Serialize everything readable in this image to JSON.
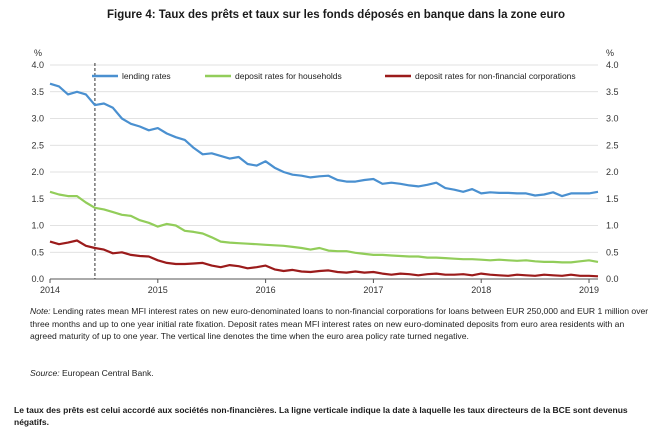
{
  "figure_title": "Figure 4: Taux des prêts et taux sur les fonds déposés en banque dans la zone euro",
  "chart_data": {
    "type": "line",
    "y_unit_left": "%",
    "y_unit_right": "%",
    "ylim": [
      0,
      4.0
    ],
    "y_ticks": [
      "4.0",
      "3.5",
      "3.0",
      "2.5",
      "2.0",
      "1.5",
      "1.0",
      "0.5",
      "0.0"
    ],
    "x_ticks": [
      "2014",
      "2015",
      "2016",
      "2017",
      "2018",
      "2019"
    ],
    "xlim": [
      "2014-01",
      "2019-02"
    ],
    "legend_position": "top",
    "vertical_line_date": "2014-06",
    "series": [
      {
        "name": "lending rates",
        "color": "#4a90d0",
        "x": [
          "2014-01",
          "2014-02",
          "2014-03",
          "2014-04",
          "2014-05",
          "2014-06",
          "2014-07",
          "2014-08",
          "2014-09",
          "2014-10",
          "2014-11",
          "2014-12",
          "2015-01",
          "2015-02",
          "2015-03",
          "2015-04",
          "2015-05",
          "2015-06",
          "2015-07",
          "2015-08",
          "2015-09",
          "2015-10",
          "2015-11",
          "2015-12",
          "2016-01",
          "2016-02",
          "2016-03",
          "2016-04",
          "2016-05",
          "2016-06",
          "2016-07",
          "2016-08",
          "2016-09",
          "2016-10",
          "2016-11",
          "2016-12",
          "2017-01",
          "2017-02",
          "2017-03",
          "2017-04",
          "2017-05",
          "2017-06",
          "2017-07",
          "2017-08",
          "2017-09",
          "2017-10",
          "2017-11",
          "2017-12",
          "2018-01",
          "2018-02",
          "2018-03",
          "2018-04",
          "2018-05",
          "2018-06",
          "2018-07",
          "2018-08",
          "2018-09",
          "2018-10",
          "2018-11",
          "2018-12",
          "2019-01",
          "2019-02"
        ],
        "values": [
          3.65,
          3.6,
          3.45,
          3.5,
          3.45,
          3.25,
          3.28,
          3.2,
          3.0,
          2.9,
          2.85,
          2.78,
          2.82,
          2.72,
          2.65,
          2.6,
          2.45,
          2.33,
          2.35,
          2.3,
          2.25,
          2.28,
          2.15,
          2.12,
          2.2,
          2.08,
          2.0,
          1.95,
          1.93,
          1.9,
          1.92,
          1.93,
          1.85,
          1.82,
          1.82,
          1.85,
          1.87,
          1.78,
          1.8,
          1.78,
          1.75,
          1.73,
          1.76,
          1.8,
          1.7,
          1.67,
          1.63,
          1.68,
          1.6,
          1.62,
          1.61,
          1.61,
          1.6,
          1.6,
          1.56,
          1.58,
          1.62,
          1.55,
          1.6,
          1.6,
          1.6,
          1.63
        ]
      },
      {
        "name": "deposit rates for households",
        "color": "#92cd5a",
        "x": [
          "2014-01",
          "2014-02",
          "2014-03",
          "2014-04",
          "2014-05",
          "2014-06",
          "2014-07",
          "2014-08",
          "2014-09",
          "2014-10",
          "2014-11",
          "2014-12",
          "2015-01",
          "2015-02",
          "2015-03",
          "2015-04",
          "2015-05",
          "2015-06",
          "2015-07",
          "2015-08",
          "2015-09",
          "2015-10",
          "2015-11",
          "2015-12",
          "2016-01",
          "2016-02",
          "2016-03",
          "2016-04",
          "2016-05",
          "2016-06",
          "2016-07",
          "2016-08",
          "2016-09",
          "2016-10",
          "2016-11",
          "2016-12",
          "2017-01",
          "2017-02",
          "2017-03",
          "2017-04",
          "2017-05",
          "2017-06",
          "2017-07",
          "2017-08",
          "2017-09",
          "2017-10",
          "2017-11",
          "2017-12",
          "2018-01",
          "2018-02",
          "2018-03",
          "2018-04",
          "2018-05",
          "2018-06",
          "2018-07",
          "2018-08",
          "2018-09",
          "2018-10",
          "2018-11",
          "2018-12",
          "2019-01",
          "2019-02"
        ],
        "values": [
          1.63,
          1.58,
          1.55,
          1.55,
          1.43,
          1.33,
          1.3,
          1.25,
          1.2,
          1.18,
          1.1,
          1.05,
          0.98,
          1.03,
          1.0,
          0.9,
          0.88,
          0.85,
          0.78,
          0.7,
          0.68,
          0.67,
          0.66,
          0.65,
          0.64,
          0.63,
          0.62,
          0.6,
          0.58,
          0.55,
          0.58,
          0.53,
          0.52,
          0.52,
          0.49,
          0.47,
          0.45,
          0.45,
          0.44,
          0.43,
          0.42,
          0.42,
          0.4,
          0.4,
          0.39,
          0.38,
          0.37,
          0.37,
          0.36,
          0.35,
          0.36,
          0.35,
          0.34,
          0.35,
          0.33,
          0.32,
          0.32,
          0.31,
          0.31,
          0.33,
          0.35,
          0.32
        ]
      },
      {
        "name": "deposit rates for non-financial corporations",
        "color": "#9b1b1b",
        "x": [
          "2014-01",
          "2014-02",
          "2014-03",
          "2014-04",
          "2014-05",
          "2014-06",
          "2014-07",
          "2014-08",
          "2014-09",
          "2014-10",
          "2014-11",
          "2014-12",
          "2015-01",
          "2015-02",
          "2015-03",
          "2015-04",
          "2015-05",
          "2015-06",
          "2015-07",
          "2015-08",
          "2015-09",
          "2015-10",
          "2015-11",
          "2015-12",
          "2016-01",
          "2016-02",
          "2016-03",
          "2016-04",
          "2016-05",
          "2016-06",
          "2016-07",
          "2016-08",
          "2016-09",
          "2016-10",
          "2016-11",
          "2016-12",
          "2017-01",
          "2017-02",
          "2017-03",
          "2017-04",
          "2017-05",
          "2017-06",
          "2017-07",
          "2017-08",
          "2017-09",
          "2017-10",
          "2017-11",
          "2017-12",
          "2018-01",
          "2018-02",
          "2018-03",
          "2018-04",
          "2018-05",
          "2018-06",
          "2018-07",
          "2018-08",
          "2018-09",
          "2018-10",
          "2018-11",
          "2018-12",
          "2019-01",
          "2019-02"
        ],
        "values": [
          0.7,
          0.65,
          0.68,
          0.72,
          0.62,
          0.58,
          0.55,
          0.48,
          0.5,
          0.45,
          0.43,
          0.42,
          0.35,
          0.3,
          0.28,
          0.28,
          0.29,
          0.3,
          0.25,
          0.22,
          0.26,
          0.24,
          0.2,
          0.22,
          0.25,
          0.18,
          0.15,
          0.17,
          0.14,
          0.13,
          0.15,
          0.16,
          0.13,
          0.12,
          0.14,
          0.12,
          0.13,
          0.1,
          0.08,
          0.1,
          0.09,
          0.07,
          0.09,
          0.1,
          0.08,
          0.08,
          0.09,
          0.07,
          0.1,
          0.08,
          0.07,
          0.06,
          0.08,
          0.07,
          0.06,
          0.08,
          0.07,
          0.06,
          0.08,
          0.06,
          0.06,
          0.05
        ]
      }
    ]
  },
  "note": {
    "label": "Note:",
    "text": " Lending rates mean MFI interest rates on new euro-denominated loans to non-financial corporations for loans between EUR 250,000 and EUR 1 million over three months and up to one year initial rate fixation. Deposit rates mean MFI interest rates on new euro-dominated deposits from euro area residents with an agreed maturity of up to one year. The vertical line denotes the time when the euro area policy rate turned negative."
  },
  "source": {
    "label": "Source:",
    "text": " European Central Bank."
  },
  "caption": "Le taux des prêts est celui accordé aux sociétés non-financières. La ligne verticale indique la date à laquelle les taux directeurs de la BCE sont devenus négatifs."
}
